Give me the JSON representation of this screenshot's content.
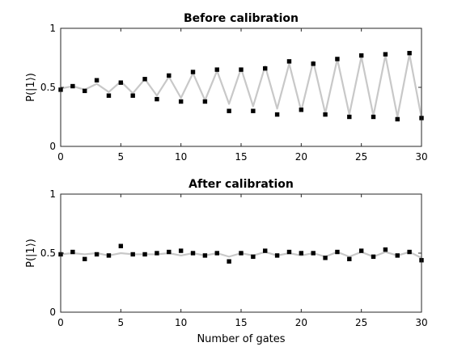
{
  "chart_data": [
    {
      "type": "line",
      "title": "Before calibration",
      "xlabel": "",
      "ylabel": "P(|1⟩)",
      "xlim": [
        0,
        30
      ],
      "ylim": [
        0,
        1
      ],
      "xticks": [
        0,
        5,
        10,
        15,
        20,
        25,
        30
      ],
      "yticks": [
        0,
        0.5,
        1
      ],
      "xtick_labels": [
        "0",
        "5",
        "10",
        "15",
        "20",
        "25",
        "30"
      ],
      "ytick_labels": [
        "0",
        "0.5",
        "1"
      ],
      "grid": false,
      "series": [
        {
          "style": "line",
          "color": "#c8c8c8",
          "x": [
            0,
            1,
            2,
            3,
            4,
            5,
            6,
            7,
            8,
            9,
            10,
            11,
            12,
            13,
            14,
            15,
            16,
            17,
            18,
            19,
            20,
            21,
            22,
            23,
            24,
            25,
            26,
            27,
            28,
            29,
            30
          ],
          "y": [
            0.49,
            0.51,
            0.48,
            0.53,
            0.46,
            0.55,
            0.45,
            0.57,
            0.43,
            0.59,
            0.41,
            0.62,
            0.39,
            0.64,
            0.36,
            0.66,
            0.34,
            0.68,
            0.32,
            0.7,
            0.3,
            0.72,
            0.28,
            0.74,
            0.27,
            0.76,
            0.26,
            0.77,
            0.25,
            0.78,
            0.24
          ]
        },
        {
          "style": "markers",
          "color": "#000000",
          "x": [
            0,
            1,
            2,
            3,
            4,
            5,
            6,
            7,
            8,
            9,
            10,
            11,
            12,
            13,
            14,
            15,
            16,
            17,
            18,
            19,
            20,
            21,
            22,
            23,
            24,
            25,
            26,
            27,
            28,
            29,
            30
          ],
          "y": [
            0.48,
            0.51,
            0.47,
            0.56,
            0.43,
            0.54,
            0.43,
            0.57,
            0.4,
            0.6,
            0.38,
            0.63,
            0.38,
            0.65,
            0.3,
            0.65,
            0.3,
            0.66,
            0.27,
            0.72,
            0.31,
            0.7,
            0.27,
            0.74,
            0.25,
            0.77,
            0.25,
            0.78,
            0.23,
            0.79,
            0.24
          ]
        }
      ]
    },
    {
      "type": "line",
      "title": "After calibration",
      "xlabel": "Number of gates",
      "ylabel": "P(|1⟩)",
      "xlim": [
        0,
        30
      ],
      "ylim": [
        0,
        1
      ],
      "xticks": [
        0,
        5,
        10,
        15,
        20,
        25,
        30
      ],
      "yticks": [
        0,
        0.5,
        1
      ],
      "xtick_labels": [
        "0",
        "5",
        "10",
        "15",
        "20",
        "25",
        "30"
      ],
      "ytick_labels": [
        "0",
        "0.5",
        "1"
      ],
      "grid": false,
      "series": [
        {
          "style": "line",
          "color": "#c8c8c8",
          "x": [
            0,
            1,
            2,
            3,
            4,
            5,
            6,
            7,
            8,
            9,
            10,
            11,
            12,
            13,
            14,
            15,
            16,
            17,
            18,
            19,
            20,
            21,
            22,
            23,
            24,
            25,
            26,
            27,
            28,
            29,
            30
          ],
          "y": [
            0.49,
            0.5,
            0.49,
            0.5,
            0.48,
            0.5,
            0.49,
            0.49,
            0.49,
            0.5,
            0.48,
            0.5,
            0.48,
            0.5,
            0.47,
            0.5,
            0.48,
            0.51,
            0.48,
            0.5,
            0.48,
            0.5,
            0.47,
            0.51,
            0.47,
            0.51,
            0.47,
            0.51,
            0.48,
            0.51,
            0.46
          ]
        },
        {
          "style": "markers",
          "color": "#000000",
          "x": [
            0,
            1,
            2,
            3,
            4,
            5,
            6,
            7,
            8,
            9,
            10,
            11,
            12,
            13,
            14,
            15,
            16,
            17,
            18,
            19,
            20,
            21,
            22,
            23,
            24,
            25,
            26,
            27,
            28,
            29,
            30
          ],
          "y": [
            0.49,
            0.51,
            0.45,
            0.49,
            0.48,
            0.56,
            0.49,
            0.49,
            0.5,
            0.51,
            0.52,
            0.5,
            0.48,
            0.5,
            0.43,
            0.5,
            0.47,
            0.52,
            0.48,
            0.51,
            0.5,
            0.5,
            0.46,
            0.51,
            0.45,
            0.52,
            0.47,
            0.53,
            0.48,
            0.51,
            0.44
          ]
        }
      ]
    }
  ]
}
